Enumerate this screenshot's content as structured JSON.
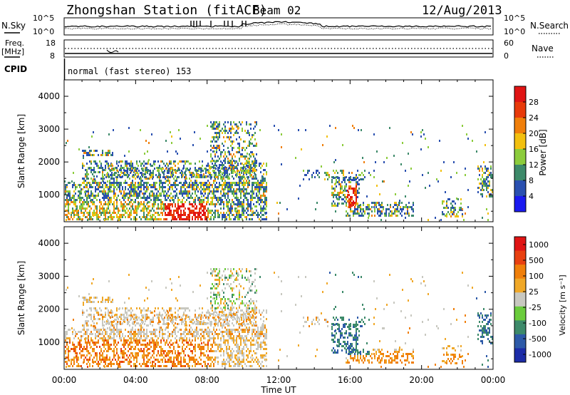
{
  "header": {
    "station": "Zhongshan Station (fitACF)",
    "beam": "Beam 02",
    "date": "12/Aug/2013"
  },
  "strip1": {
    "left_label": "N.Sky",
    "right_label": "N.Search",
    "left_ticks": [
      "10^5",
      "10^0"
    ],
    "right_ticks": [
      "10^5",
      "10^0"
    ]
  },
  "strip2": {
    "left_label_1": "Freq.",
    "left_label_2": "[MHz]",
    "right_label": "Nave",
    "left_ticks": [
      "18",
      "8"
    ],
    "right_ticks": [
      "60",
      "0"
    ]
  },
  "cpid": {
    "label": "CPID",
    "value": "normal (fast stereo) 153"
  },
  "chart_data": [
    {
      "type": "heatmap",
      "name": "power",
      "ylabel": "Slant Range [km]",
      "yticks": [
        "1000",
        "2000",
        "3000",
        "4000"
      ],
      "colorbar_label": "Power [dB]",
      "colorbar_ticks": [
        "4",
        "8",
        "12",
        "16",
        "20",
        "24",
        "28"
      ],
      "colors": [
        "#1a1af0",
        "#2a50b0",
        "#3d8a6a",
        "#8ccc3c",
        "#f2c00f",
        "#f07f0a",
        "#e83a0a",
        "#e01414"
      ]
    },
    {
      "type": "heatmap",
      "name": "velocity",
      "ylabel": "Slant Range [km]",
      "yticks": [
        "1000",
        "2000",
        "3000",
        "4000"
      ],
      "colorbar_label": "Velocity [m s⁻¹]",
      "colorbar_ticks": [
        "1000",
        "500",
        "100",
        "25",
        "-25",
        "-100",
        "-500",
        "-1000"
      ],
      "colors": [
        "#1c2ca8",
        "#2d5aa8",
        "#3d8a6a",
        "#6acc3c",
        "#c8c8c0",
        "#f0a828",
        "#f07f0a",
        "#e84010",
        "#e01414"
      ]
    }
  ],
  "x_axis": {
    "label": "Time UT",
    "ticks": [
      "00:00",
      "04:00",
      "08:00",
      "12:00",
      "16:00",
      "20:00",
      "00:00"
    ]
  }
}
